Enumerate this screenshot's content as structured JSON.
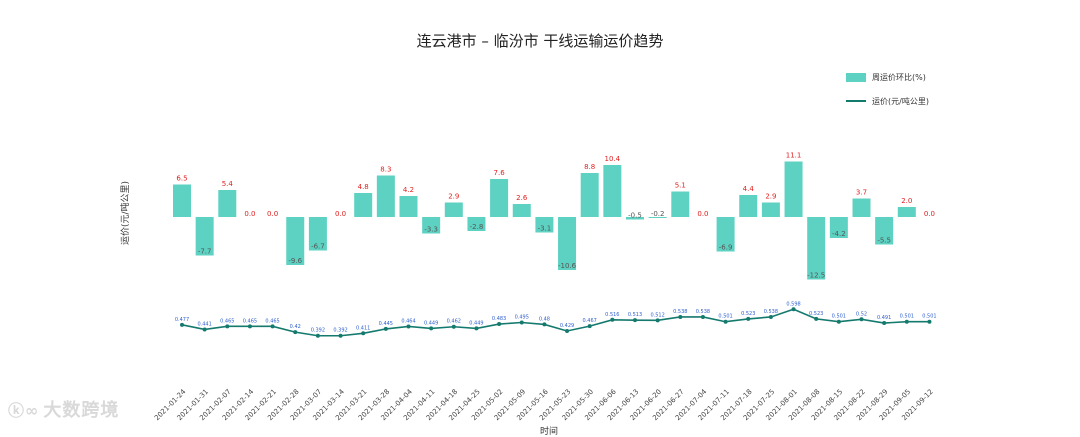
{
  "title": "连云港市 – 临汾市 干线运输运价趋势",
  "watermark": "大数跨境",
  "chart_data": {
    "type": "bar+line",
    "ylabel": "运价(元/吨公里)",
    "xlabel": "时间",
    "legend": [
      "周运价环比(%)",
      "运价(元/吨公里)"
    ],
    "legend_position": "top-right",
    "colors": {
      "bar": "#5dd2c2",
      "line": "#157a6e",
      "bar_label": "#e02020",
      "line_label": "#2f5fcf"
    },
    "categories": [
      "2021-01-24",
      "2021-01-31",
      "2021-02-07",
      "2021-02-14",
      "2021-02-21",
      "2021-02-28",
      "2021-03-07",
      "2021-03-14",
      "2021-03-21",
      "2021-03-28",
      "2021-04-04",
      "2021-04-11",
      "2021-04-18",
      "2021-04-25",
      "2021-05-02",
      "2021-05-09",
      "2021-05-16",
      "2021-05-23",
      "2021-05-30",
      "2021-06-06",
      "2021-06-13",
      "2021-06-20",
      "2021-06-27",
      "2021-07-04",
      "2021-07-11",
      "2021-07-18",
      "2021-07-25",
      "2021-08-01",
      "2021-08-08",
      "2021-08-15",
      "2021-08-22",
      "2021-08-29",
      "2021-09-05",
      "2021-09-12"
    ],
    "bar_series": {
      "name": "周运价环比(%)",
      "values": [
        6.5,
        -7.7,
        5.4,
        0.0,
        0.0,
        -9.6,
        -6.7,
        0.0,
        4.8,
        8.3,
        4.2,
        -3.3,
        2.9,
        -2.8,
        7.6,
        2.6,
        -3.1,
        -10.6,
        8.8,
        10.4,
        -0.5,
        -0.2,
        5.1,
        0.0,
        -6.9,
        4.4,
        2.9,
        11.1,
        -12.5,
        -4.2,
        3.7,
        -5.5,
        2.0,
        0.0
      ],
      "labels": [
        "6.5",
        "-7.7",
        "5.4",
        "0.0",
        "0.0",
        "-9.6",
        "-6.7",
        "0.0",
        "4.8",
        "8.3",
        "4.2",
        "-3.3",
        "2.9",
        "-2.8",
        "7.6",
        "2.6",
        "-3.1",
        "-10.6",
        "8.8",
        "10.4",
        "-0.5",
        "-0.2",
        "5.1",
        "0.0",
        "-6.9",
        "4.4",
        "2.9",
        "11.1",
        "-12.5",
        "-4.2",
        "3.7",
        "-5.5",
        "2.0",
        "0.0"
      ]
    },
    "line_series": {
      "name": "运价(元/吨公里)",
      "values": [
        0.477,
        0.441,
        0.465,
        0.465,
        0.465,
        0.42,
        0.392,
        0.392,
        0.411,
        0.445,
        0.464,
        0.449,
        0.462,
        0.449,
        0.483,
        0.495,
        0.48,
        0.429,
        0.467,
        0.516,
        0.513,
        0.512,
        0.538,
        0.538,
        0.501,
        0.523,
        0.538,
        0.598,
        0.523,
        0.501,
        0.52,
        0.491,
        0.501,
        0.501
      ]
    }
  }
}
